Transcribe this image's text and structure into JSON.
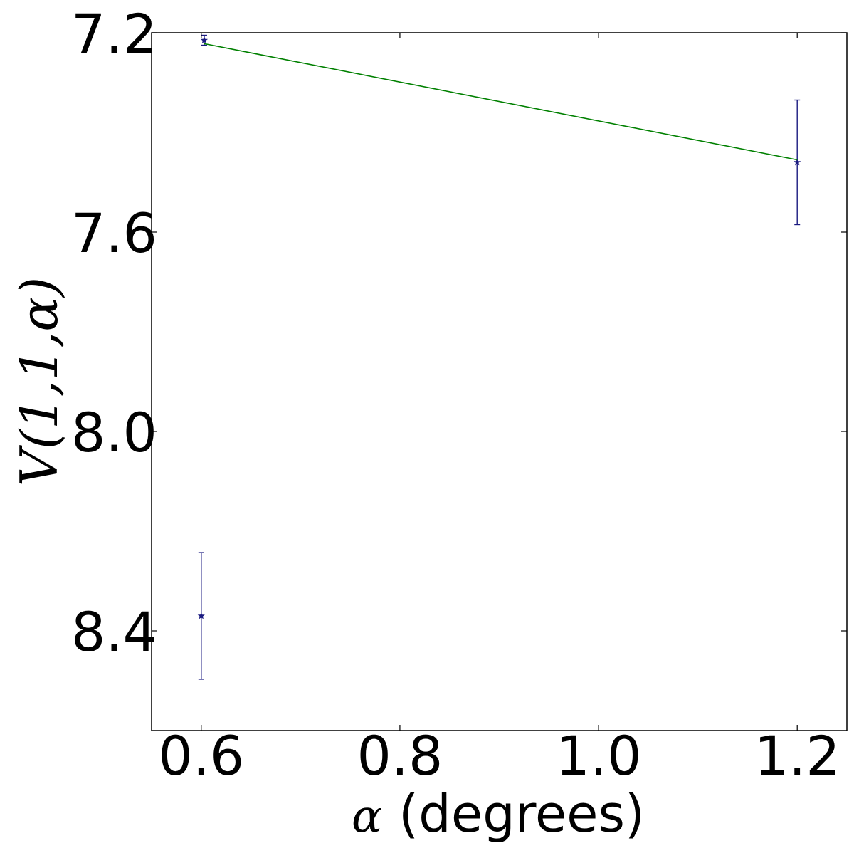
{
  "chart_data": {
    "type": "scatter",
    "title": "",
    "xlabel_symbol": "α",
    "xlabel_text": " (degrees)",
    "ylabel": "V(1,1,α)",
    "xlim": [
      0.55,
      1.25
    ],
    "ylim": [
      7.2,
      8.6
    ],
    "y_axis_inverted": true,
    "grid": false,
    "x_ticks": [
      0.6,
      0.8,
      1.0,
      1.2
    ],
    "x_tick_labels": [
      "0.6",
      "0.8",
      "1.0",
      "1.2"
    ],
    "y_ticks": [
      7.2,
      7.6,
      8.0,
      8.4
    ],
    "y_tick_labels": [
      "7.2",
      "7.6",
      "8.0",
      "8.4"
    ],
    "series": [
      {
        "marker": "star",
        "color": "#1a1a80",
        "points": [
          {
            "x": 0.6,
            "y": 8.37,
            "yerr": 0.127
          },
          {
            "x": 0.603,
            "y": 7.215,
            "yerr": 0.01
          },
          {
            "x": 1.2,
            "y": 7.46,
            "yerr": 0.125
          }
        ]
      },
      {
        "type": "line",
        "color": "#008000",
        "x": [
          0.603,
          1.2
        ],
        "y": [
          7.222,
          7.455
        ]
      }
    ]
  }
}
